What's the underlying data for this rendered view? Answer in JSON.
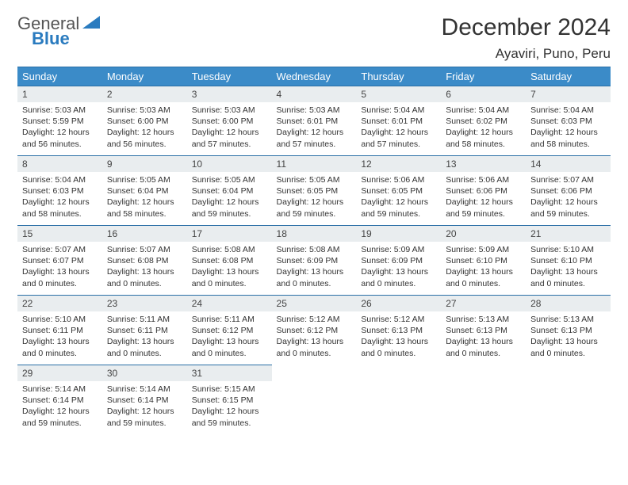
{
  "brand": {
    "word1": "General",
    "word2": "Blue",
    "logo_color": "#2a7bbf"
  },
  "title": "December 2024",
  "location": "Ayaviri, Puno, Peru",
  "colors": {
    "header_bg": "#3b8bc8",
    "header_border": "#2a6fa6",
    "daynum_bg": "#e9edef",
    "text": "#333333"
  },
  "day_headers": [
    "Sunday",
    "Monday",
    "Tuesday",
    "Wednesday",
    "Thursday",
    "Friday",
    "Saturday"
  ],
  "weeks": [
    [
      {
        "n": "1",
        "sr": "Sunrise: 5:03 AM",
        "ss": "Sunset: 5:59 PM",
        "dl": "Daylight: 12 hours and 56 minutes."
      },
      {
        "n": "2",
        "sr": "Sunrise: 5:03 AM",
        "ss": "Sunset: 6:00 PM",
        "dl": "Daylight: 12 hours and 56 minutes."
      },
      {
        "n": "3",
        "sr": "Sunrise: 5:03 AM",
        "ss": "Sunset: 6:00 PM",
        "dl": "Daylight: 12 hours and 57 minutes."
      },
      {
        "n": "4",
        "sr": "Sunrise: 5:03 AM",
        "ss": "Sunset: 6:01 PM",
        "dl": "Daylight: 12 hours and 57 minutes."
      },
      {
        "n": "5",
        "sr": "Sunrise: 5:04 AM",
        "ss": "Sunset: 6:01 PM",
        "dl": "Daylight: 12 hours and 57 minutes."
      },
      {
        "n": "6",
        "sr": "Sunrise: 5:04 AM",
        "ss": "Sunset: 6:02 PM",
        "dl": "Daylight: 12 hours and 58 minutes."
      },
      {
        "n": "7",
        "sr": "Sunrise: 5:04 AM",
        "ss": "Sunset: 6:03 PM",
        "dl": "Daylight: 12 hours and 58 minutes."
      }
    ],
    [
      {
        "n": "8",
        "sr": "Sunrise: 5:04 AM",
        "ss": "Sunset: 6:03 PM",
        "dl": "Daylight: 12 hours and 58 minutes."
      },
      {
        "n": "9",
        "sr": "Sunrise: 5:05 AM",
        "ss": "Sunset: 6:04 PM",
        "dl": "Daylight: 12 hours and 58 minutes."
      },
      {
        "n": "10",
        "sr": "Sunrise: 5:05 AM",
        "ss": "Sunset: 6:04 PM",
        "dl": "Daylight: 12 hours and 59 minutes."
      },
      {
        "n": "11",
        "sr": "Sunrise: 5:05 AM",
        "ss": "Sunset: 6:05 PM",
        "dl": "Daylight: 12 hours and 59 minutes."
      },
      {
        "n": "12",
        "sr": "Sunrise: 5:06 AM",
        "ss": "Sunset: 6:05 PM",
        "dl": "Daylight: 12 hours and 59 minutes."
      },
      {
        "n": "13",
        "sr": "Sunrise: 5:06 AM",
        "ss": "Sunset: 6:06 PM",
        "dl": "Daylight: 12 hours and 59 minutes."
      },
      {
        "n": "14",
        "sr": "Sunrise: 5:07 AM",
        "ss": "Sunset: 6:06 PM",
        "dl": "Daylight: 12 hours and 59 minutes."
      }
    ],
    [
      {
        "n": "15",
        "sr": "Sunrise: 5:07 AM",
        "ss": "Sunset: 6:07 PM",
        "dl": "Daylight: 13 hours and 0 minutes."
      },
      {
        "n": "16",
        "sr": "Sunrise: 5:07 AM",
        "ss": "Sunset: 6:08 PM",
        "dl": "Daylight: 13 hours and 0 minutes."
      },
      {
        "n": "17",
        "sr": "Sunrise: 5:08 AM",
        "ss": "Sunset: 6:08 PM",
        "dl": "Daylight: 13 hours and 0 minutes."
      },
      {
        "n": "18",
        "sr": "Sunrise: 5:08 AM",
        "ss": "Sunset: 6:09 PM",
        "dl": "Daylight: 13 hours and 0 minutes."
      },
      {
        "n": "19",
        "sr": "Sunrise: 5:09 AM",
        "ss": "Sunset: 6:09 PM",
        "dl": "Daylight: 13 hours and 0 minutes."
      },
      {
        "n": "20",
        "sr": "Sunrise: 5:09 AM",
        "ss": "Sunset: 6:10 PM",
        "dl": "Daylight: 13 hours and 0 minutes."
      },
      {
        "n": "21",
        "sr": "Sunrise: 5:10 AM",
        "ss": "Sunset: 6:10 PM",
        "dl": "Daylight: 13 hours and 0 minutes."
      }
    ],
    [
      {
        "n": "22",
        "sr": "Sunrise: 5:10 AM",
        "ss": "Sunset: 6:11 PM",
        "dl": "Daylight: 13 hours and 0 minutes."
      },
      {
        "n": "23",
        "sr": "Sunrise: 5:11 AM",
        "ss": "Sunset: 6:11 PM",
        "dl": "Daylight: 13 hours and 0 minutes."
      },
      {
        "n": "24",
        "sr": "Sunrise: 5:11 AM",
        "ss": "Sunset: 6:12 PM",
        "dl": "Daylight: 13 hours and 0 minutes."
      },
      {
        "n": "25",
        "sr": "Sunrise: 5:12 AM",
        "ss": "Sunset: 6:12 PM",
        "dl": "Daylight: 13 hours and 0 minutes."
      },
      {
        "n": "26",
        "sr": "Sunrise: 5:12 AM",
        "ss": "Sunset: 6:13 PM",
        "dl": "Daylight: 13 hours and 0 minutes."
      },
      {
        "n": "27",
        "sr": "Sunrise: 5:13 AM",
        "ss": "Sunset: 6:13 PM",
        "dl": "Daylight: 13 hours and 0 minutes."
      },
      {
        "n": "28",
        "sr": "Sunrise: 5:13 AM",
        "ss": "Sunset: 6:13 PM",
        "dl": "Daylight: 13 hours and 0 minutes."
      }
    ],
    [
      {
        "n": "29",
        "sr": "Sunrise: 5:14 AM",
        "ss": "Sunset: 6:14 PM",
        "dl": "Daylight: 12 hours and 59 minutes."
      },
      {
        "n": "30",
        "sr": "Sunrise: 5:14 AM",
        "ss": "Sunset: 6:14 PM",
        "dl": "Daylight: 12 hours and 59 minutes."
      },
      {
        "n": "31",
        "sr": "Sunrise: 5:15 AM",
        "ss": "Sunset: 6:15 PM",
        "dl": "Daylight: 12 hours and 59 minutes."
      },
      null,
      null,
      null,
      null
    ]
  ]
}
